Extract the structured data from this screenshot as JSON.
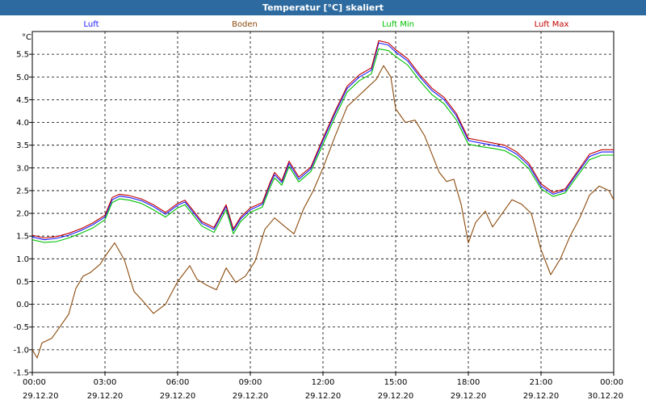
{
  "chart_data": {
    "type": "line",
    "title": "Temperatur [°C] skaliert",
    "ylabel": "°C",
    "ylim": [
      -1.5,
      6.0
    ],
    "yticks": [
      -1.5,
      -1.0,
      -0.5,
      0.0,
      0.5,
      1.0,
      1.5,
      2.0,
      2.5,
      3.0,
      3.5,
      4.0,
      4.5,
      5.0,
      5.5
    ],
    "xlim": [
      0,
      24
    ],
    "xticks": [
      {
        "x": 0,
        "time": "00:00",
        "date": "29.12.20"
      },
      {
        "x": 3,
        "time": "03:00",
        "date": "29.12.20"
      },
      {
        "x": 6,
        "time": "06:00",
        "date": "29.12.20"
      },
      {
        "x": 9,
        "time": "09:00",
        "date": "29.12.20"
      },
      {
        "x": 12,
        "time": "12:00",
        "date": "29.12.20"
      },
      {
        "x": 15,
        "time": "15:00",
        "date": "29.12.20"
      },
      {
        "x": 18,
        "time": "18:00",
        "date": "29.12.20"
      },
      {
        "x": 21,
        "time": "21:00",
        "date": "29.12.20"
      },
      {
        "x": 24,
        "time": "00:00",
        "date": "30.12.20"
      }
    ],
    "grid": true,
    "legend": "top",
    "series": [
      {
        "name": "Luft",
        "color": "#1a1aff",
        "points": [
          [
            0,
            1.48
          ],
          [
            0.5,
            1.42
          ],
          [
            1,
            1.45
          ],
          [
            1.5,
            1.52
          ],
          [
            2,
            1.62
          ],
          [
            2.5,
            1.75
          ],
          [
            3,
            1.92
          ],
          [
            3.3,
            2.3
          ],
          [
            3.6,
            2.38
          ],
          [
            4,
            2.35
          ],
          [
            4.5,
            2.28
          ],
          [
            5,
            2.15
          ],
          [
            5.5,
            1.98
          ],
          [
            6,
            2.18
          ],
          [
            6.3,
            2.25
          ],
          [
            6.6,
            2.05
          ],
          [
            7,
            1.78
          ],
          [
            7.5,
            1.65
          ],
          [
            8,
            2.15
          ],
          [
            8.3,
            1.62
          ],
          [
            8.6,
            1.88
          ],
          [
            9,
            2.08
          ],
          [
            9.5,
            2.2
          ],
          [
            9.8,
            2.62
          ],
          [
            10,
            2.85
          ],
          [
            10.3,
            2.68
          ],
          [
            10.6,
            3.1
          ],
          [
            11,
            2.75
          ],
          [
            11.5,
            2.98
          ],
          [
            12,
            3.6
          ],
          [
            12.5,
            4.2
          ],
          [
            13,
            4.75
          ],
          [
            13.5,
            5.0
          ],
          [
            14,
            5.15
          ],
          [
            14.3,
            5.75
          ],
          [
            14.7,
            5.7
          ],
          [
            15,
            5.55
          ],
          [
            15.5,
            5.35
          ],
          [
            16,
            5.0
          ],
          [
            16.5,
            4.7
          ],
          [
            17,
            4.5
          ],
          [
            17.5,
            4.15
          ],
          [
            18,
            3.6
          ],
          [
            18.5,
            3.55
          ],
          [
            19,
            3.5
          ],
          [
            19.5,
            3.45
          ],
          [
            20,
            3.3
          ],
          [
            20.5,
            3.05
          ],
          [
            21,
            2.6
          ],
          [
            21.5,
            2.42
          ],
          [
            22,
            2.5
          ],
          [
            22.5,
            2.88
          ],
          [
            23,
            3.25
          ],
          [
            23.5,
            3.35
          ],
          [
            24,
            3.35
          ]
        ]
      },
      {
        "name": "Boden",
        "color": "#8b4a0c",
        "points": [
          [
            0,
            -1.0
          ],
          [
            0.2,
            -1.18
          ],
          [
            0.4,
            -0.85
          ],
          [
            0.8,
            -0.75
          ],
          [
            1.2,
            -0.45
          ],
          [
            1.5,
            -0.22
          ],
          [
            1.8,
            0.35
          ],
          [
            2.1,
            0.62
          ],
          [
            2.4,
            0.7
          ],
          [
            2.8,
            0.88
          ],
          [
            3,
            1.05
          ],
          [
            3.4,
            1.35
          ],
          [
            3.8,
            0.98
          ],
          [
            4.2,
            0.28
          ],
          [
            4.6,
            0.05
          ],
          [
            5,
            -0.2
          ],
          [
            5.5,
            0.0
          ],
          [
            6,
            0.5
          ],
          [
            6.5,
            0.85
          ],
          [
            6.8,
            0.55
          ],
          [
            7.2,
            0.42
          ],
          [
            7.6,
            0.32
          ],
          [
            8,
            0.8
          ],
          [
            8.4,
            0.48
          ],
          [
            8.8,
            0.62
          ],
          [
            9.2,
            0.95
          ],
          [
            9.6,
            1.65
          ],
          [
            10,
            1.9
          ],
          [
            10.4,
            1.72
          ],
          [
            10.8,
            1.55
          ],
          [
            11.2,
            2.1
          ],
          [
            11.6,
            2.5
          ],
          [
            12,
            3.0
          ],
          [
            12.5,
            3.7
          ],
          [
            13,
            4.35
          ],
          [
            13.4,
            4.55
          ],
          [
            13.8,
            4.75
          ],
          [
            14.2,
            4.95
          ],
          [
            14.5,
            5.25
          ],
          [
            14.8,
            5.0
          ],
          [
            15,
            4.3
          ],
          [
            15.4,
            4.0
          ],
          [
            15.8,
            4.05
          ],
          [
            16.2,
            3.7
          ],
          [
            16.5,
            3.3
          ],
          [
            16.8,
            2.9
          ],
          [
            17.1,
            2.7
          ],
          [
            17.4,
            2.75
          ],
          [
            17.7,
            2.2
          ],
          [
            18.0,
            1.35
          ],
          [
            18.3,
            1.8
          ],
          [
            18.7,
            2.05
          ],
          [
            19.0,
            1.7
          ],
          [
            19.4,
            2.0
          ],
          [
            19.8,
            2.3
          ],
          [
            20.2,
            2.2
          ],
          [
            20.6,
            2.0
          ],
          [
            21.0,
            1.2
          ],
          [
            21.4,
            0.65
          ],
          [
            21.8,
            1.0
          ],
          [
            22.2,
            1.5
          ],
          [
            22.6,
            1.9
          ],
          [
            23.0,
            2.4
          ],
          [
            23.4,
            2.6
          ],
          [
            23.8,
            2.5
          ],
          [
            24,
            2.3
          ]
        ]
      },
      {
        "name": "Luft Min",
        "color": "#00c000",
        "points": [
          [
            0,
            1.42
          ],
          [
            0.5,
            1.36
          ],
          [
            1,
            1.38
          ],
          [
            1.5,
            1.46
          ],
          [
            2,
            1.56
          ],
          [
            2.5,
            1.68
          ],
          [
            3,
            1.86
          ],
          [
            3.3,
            2.24
          ],
          [
            3.6,
            2.32
          ],
          [
            4,
            2.29
          ],
          [
            4.5,
            2.22
          ],
          [
            5,
            2.08
          ],
          [
            5.5,
            1.92
          ],
          [
            6,
            2.12
          ],
          [
            6.3,
            2.19
          ],
          [
            6.6,
            1.99
          ],
          [
            7,
            1.72
          ],
          [
            7.5,
            1.58
          ],
          [
            8,
            2.08
          ],
          [
            8.3,
            1.55
          ],
          [
            8.6,
            1.82
          ],
          [
            9,
            2.02
          ],
          [
            9.5,
            2.14
          ],
          [
            9.8,
            2.55
          ],
          [
            10,
            2.78
          ],
          [
            10.3,
            2.62
          ],
          [
            10.6,
            3.03
          ],
          [
            11,
            2.69
          ],
          [
            11.5,
            2.92
          ],
          [
            12,
            3.52
          ],
          [
            12.5,
            4.12
          ],
          [
            13,
            4.67
          ],
          [
            13.5,
            4.92
          ],
          [
            14,
            5.07
          ],
          [
            14.3,
            5.62
          ],
          [
            14.7,
            5.58
          ],
          [
            15,
            5.45
          ],
          [
            15.5,
            5.26
          ],
          [
            16,
            4.91
          ],
          [
            16.5,
            4.61
          ],
          [
            17,
            4.41
          ],
          [
            17.5,
            4.06
          ],
          [
            18,
            3.52
          ],
          [
            18.5,
            3.47
          ],
          [
            19,
            3.43
          ],
          [
            19.5,
            3.38
          ],
          [
            20,
            3.23
          ],
          [
            20.5,
            2.98
          ],
          [
            21,
            2.54
          ],
          [
            21.5,
            2.37
          ],
          [
            22,
            2.45
          ],
          [
            22.5,
            2.82
          ],
          [
            23,
            3.18
          ],
          [
            23.5,
            3.28
          ],
          [
            24,
            3.28
          ]
        ]
      },
      {
        "name": "Luft Max",
        "color": "#c00000",
        "points": [
          [
            0,
            1.52
          ],
          [
            0.5,
            1.46
          ],
          [
            1,
            1.49
          ],
          [
            1.5,
            1.56
          ],
          [
            2,
            1.66
          ],
          [
            2.5,
            1.79
          ],
          [
            3,
            1.96
          ],
          [
            3.3,
            2.35
          ],
          [
            3.6,
            2.42
          ],
          [
            4,
            2.39
          ],
          [
            4.5,
            2.32
          ],
          [
            5,
            2.19
          ],
          [
            5.5,
            2.02
          ],
          [
            6,
            2.22
          ],
          [
            6.3,
            2.29
          ],
          [
            6.6,
            2.09
          ],
          [
            7,
            1.82
          ],
          [
            7.5,
            1.69
          ],
          [
            8,
            2.19
          ],
          [
            8.3,
            1.66
          ],
          [
            8.6,
            1.92
          ],
          [
            9,
            2.12
          ],
          [
            9.5,
            2.24
          ],
          [
            9.8,
            2.66
          ],
          [
            10,
            2.9
          ],
          [
            10.3,
            2.72
          ],
          [
            10.6,
            3.15
          ],
          [
            11,
            2.8
          ],
          [
            11.5,
            3.02
          ],
          [
            12,
            3.65
          ],
          [
            12.5,
            4.25
          ],
          [
            13,
            4.8
          ],
          [
            13.5,
            5.05
          ],
          [
            14,
            5.2
          ],
          [
            14.3,
            5.8
          ],
          [
            14.7,
            5.75
          ],
          [
            15,
            5.6
          ],
          [
            15.5,
            5.4
          ],
          [
            16,
            5.05
          ],
          [
            16.5,
            4.75
          ],
          [
            17,
            4.55
          ],
          [
            17.5,
            4.2
          ],
          [
            18,
            3.65
          ],
          [
            18.5,
            3.6
          ],
          [
            19,
            3.55
          ],
          [
            19.5,
            3.5
          ],
          [
            20,
            3.35
          ],
          [
            20.5,
            3.1
          ],
          [
            21,
            2.65
          ],
          [
            21.5,
            2.46
          ],
          [
            22,
            2.54
          ],
          [
            22.5,
            2.92
          ],
          [
            23,
            3.3
          ],
          [
            23.5,
            3.4
          ],
          [
            24,
            3.4
          ]
        ]
      }
    ]
  }
}
